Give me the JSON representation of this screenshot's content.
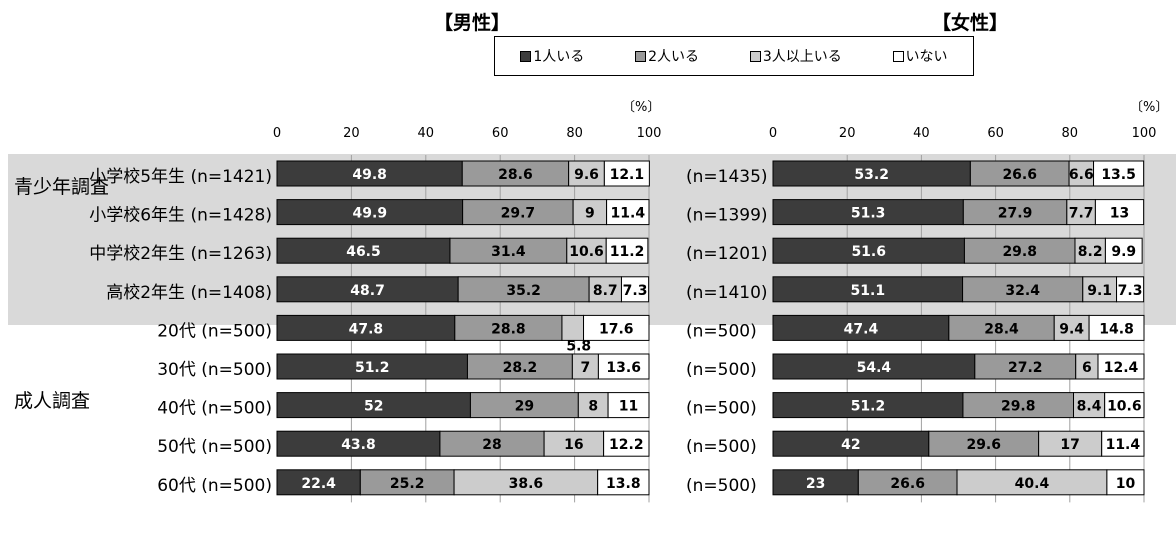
{
  "chart_data": [
    {
      "type": "bar",
      "orientation": "horizontal",
      "stacked": true,
      "title": "【男性】",
      "unit": "〔%〕",
      "xlim": [
        0,
        100
      ],
      "xticks": [
        "0",
        "20",
        "40",
        "60",
        "80",
        "100"
      ],
      "categories": [
        "小学校5年生 (n=1421)",
        "小学校6年生 (n=1428)",
        "中学校2年生 (n=1263)",
        "高校2年生 (n=1408)",
        "20代 (n=500)",
        "30代 (n=500)",
        "40代 (n=500)",
        "50代 (n=500)",
        "60代 (n=500)"
      ],
      "series": [
        {
          "name": "1人いる",
          "values": [
            49.8,
            49.9,
            46.5,
            48.7,
            47.8,
            51.2,
            52,
            43.8,
            22.4
          ]
        },
        {
          "name": "2人いる",
          "values": [
            28.6,
            29.7,
            31.4,
            35.2,
            28.8,
            28.2,
            29,
            28,
            25.2
          ]
        },
        {
          "name": "3人以上いる",
          "values": [
            9.6,
            9,
            10.6,
            8.7,
            5.8,
            7,
            8,
            16,
            38.6
          ]
        },
        {
          "name": "いない",
          "values": [
            12.1,
            11.4,
            11.2,
            7.3,
            17.6,
            13.6,
            11,
            12.2,
            13.8
          ]
        }
      ]
    },
    {
      "type": "bar",
      "orientation": "horizontal",
      "stacked": true,
      "title": "【女性】",
      "unit": "〔%〕",
      "xlim": [
        0,
        100
      ],
      "xticks": [
        "0",
        "20",
        "40",
        "60",
        "80",
        "100"
      ],
      "categories": [
        "(n=1435)",
        "(n=1399)",
        "(n=1201)",
        "(n=1410)",
        "(n=500)",
        "(n=500)",
        "(n=500)",
        "(n=500)",
        "(n=500)"
      ],
      "series": [
        {
          "name": "1人いる",
          "values": [
            53.2,
            51.3,
            51.6,
            51.1,
            47.4,
            54.4,
            51.2,
            42,
            23
          ]
        },
        {
          "name": "2人いる",
          "values": [
            26.6,
            27.9,
            29.8,
            32.4,
            28.4,
            27.2,
            29.8,
            29.6,
            26.6
          ]
        },
        {
          "name": "3人以上いる",
          "values": [
            6.6,
            7.7,
            8.2,
            9.1,
            9.4,
            6,
            8.4,
            17,
            40.4
          ]
        },
        {
          "name": "いない",
          "values": [
            13.5,
            13,
            9.9,
            7.3,
            14.8,
            12.4,
            10.6,
            11.4,
            10
          ]
        }
      ]
    }
  ],
  "colors": [
    "#3c3c3c",
    "#9a9a9a",
    "#cccccc",
    "#ffffff"
  ],
  "groups": [
    {
      "label": "青少年調査"
    },
    {
      "label": "成人調査"
    }
  ]
}
